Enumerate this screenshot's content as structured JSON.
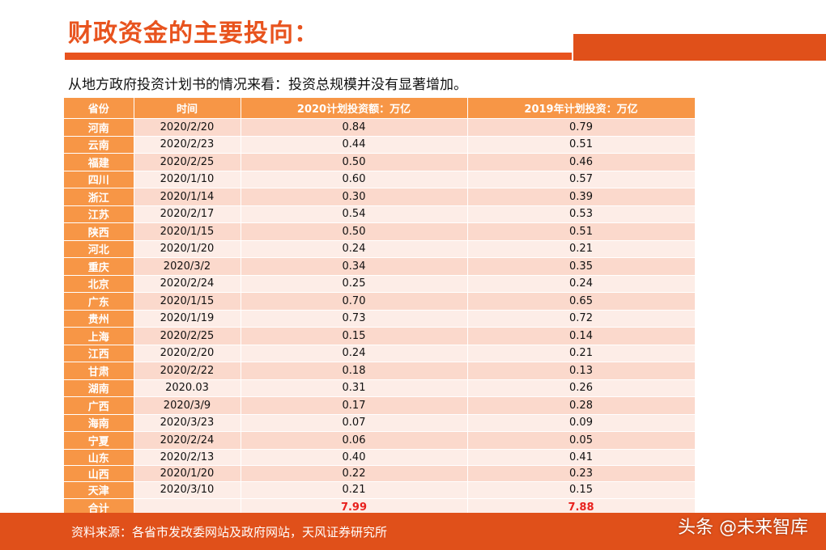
{
  "header": {
    "title": "财政资金的主要投向：",
    "subtitle": "从地方政府投资计划书的情况来看：投资总规模并没有显著增加。",
    "accent_color": "#e8531e"
  },
  "table": {
    "columns": [
      "省份",
      "时间",
      "2020计划投资额：万亿",
      "2019年计划投资：万亿"
    ],
    "rows": [
      {
        "province": "河南",
        "date": "2020/2/20",
        "v2020": "0.84",
        "v2019": "0.79"
      },
      {
        "province": "云南",
        "date": "2020/2/23",
        "v2020": "0.44",
        "v2019": "0.51"
      },
      {
        "province": "福建",
        "date": "2020/2/25",
        "v2020": "0.50",
        "v2019": "0.46"
      },
      {
        "province": "四川",
        "date": "2020/1/10",
        "v2020": "0.60",
        "v2019": "0.57"
      },
      {
        "province": "浙江",
        "date": "2020/1/14",
        "v2020": "0.30",
        "v2019": "0.39"
      },
      {
        "province": "江苏",
        "date": "2020/2/17",
        "v2020": "0.54",
        "v2019": "0.53"
      },
      {
        "province": "陕西",
        "date": "2020/1/15",
        "v2020": "0.50",
        "v2019": "0.51"
      },
      {
        "province": "河北",
        "date": "2020/1/20",
        "v2020": "0.24",
        "v2019": "0.21"
      },
      {
        "province": "重庆",
        "date": "2020/3/2",
        "v2020": "0.34",
        "v2019": "0.35"
      },
      {
        "province": "北京",
        "date": "2020/2/24",
        "v2020": "0.25",
        "v2019": "0.24"
      },
      {
        "province": "广东",
        "date": "2020/1/15",
        "v2020": "0.70",
        "v2019": "0.65"
      },
      {
        "province": "贵州",
        "date": "2020/1/19",
        "v2020": "0.73",
        "v2019": "0.72"
      },
      {
        "province": "上海",
        "date": "2020/2/25",
        "v2020": "0.15",
        "v2019": "0.14"
      },
      {
        "province": "江西",
        "date": "2020/2/20",
        "v2020": "0.24",
        "v2019": "0.21"
      },
      {
        "province": "甘肃",
        "date": "2020/2/22",
        "v2020": "0.18",
        "v2019": "0.13"
      },
      {
        "province": "湖南",
        "date": "2020.03",
        "v2020": "0.31",
        "v2019": "0.26"
      },
      {
        "province": "广西",
        "date": "2020/3/9",
        "v2020": "0.17",
        "v2019": "0.28"
      },
      {
        "province": "海南",
        "date": "2020/3/23",
        "v2020": "0.07",
        "v2019": "0.09"
      },
      {
        "province": "宁夏",
        "date": "2020/2/24",
        "v2020": "0.06",
        "v2019": "0.05"
      },
      {
        "province": "山东",
        "date": "2020/2/13",
        "v2020": "0.40",
        "v2019": "0.41"
      },
      {
        "province": "山西",
        "date": "2020/1/20",
        "v2020": "0.22",
        "v2019": "0.23"
      },
      {
        "province": "天津",
        "date": "2020/3/10",
        "v2020": "0.21",
        "v2019": "0.15"
      }
    ],
    "total": {
      "province": "合计",
      "date": "",
      "v2020": "7.99",
      "v2019": "7.88"
    },
    "header_color": "#f79646",
    "total_color": "#e8211e"
  },
  "footer": {
    "source": "资料来源：各省市发改委网站及政府网站，天风证券研究所",
    "watermark": "头条 @未来智库"
  }
}
